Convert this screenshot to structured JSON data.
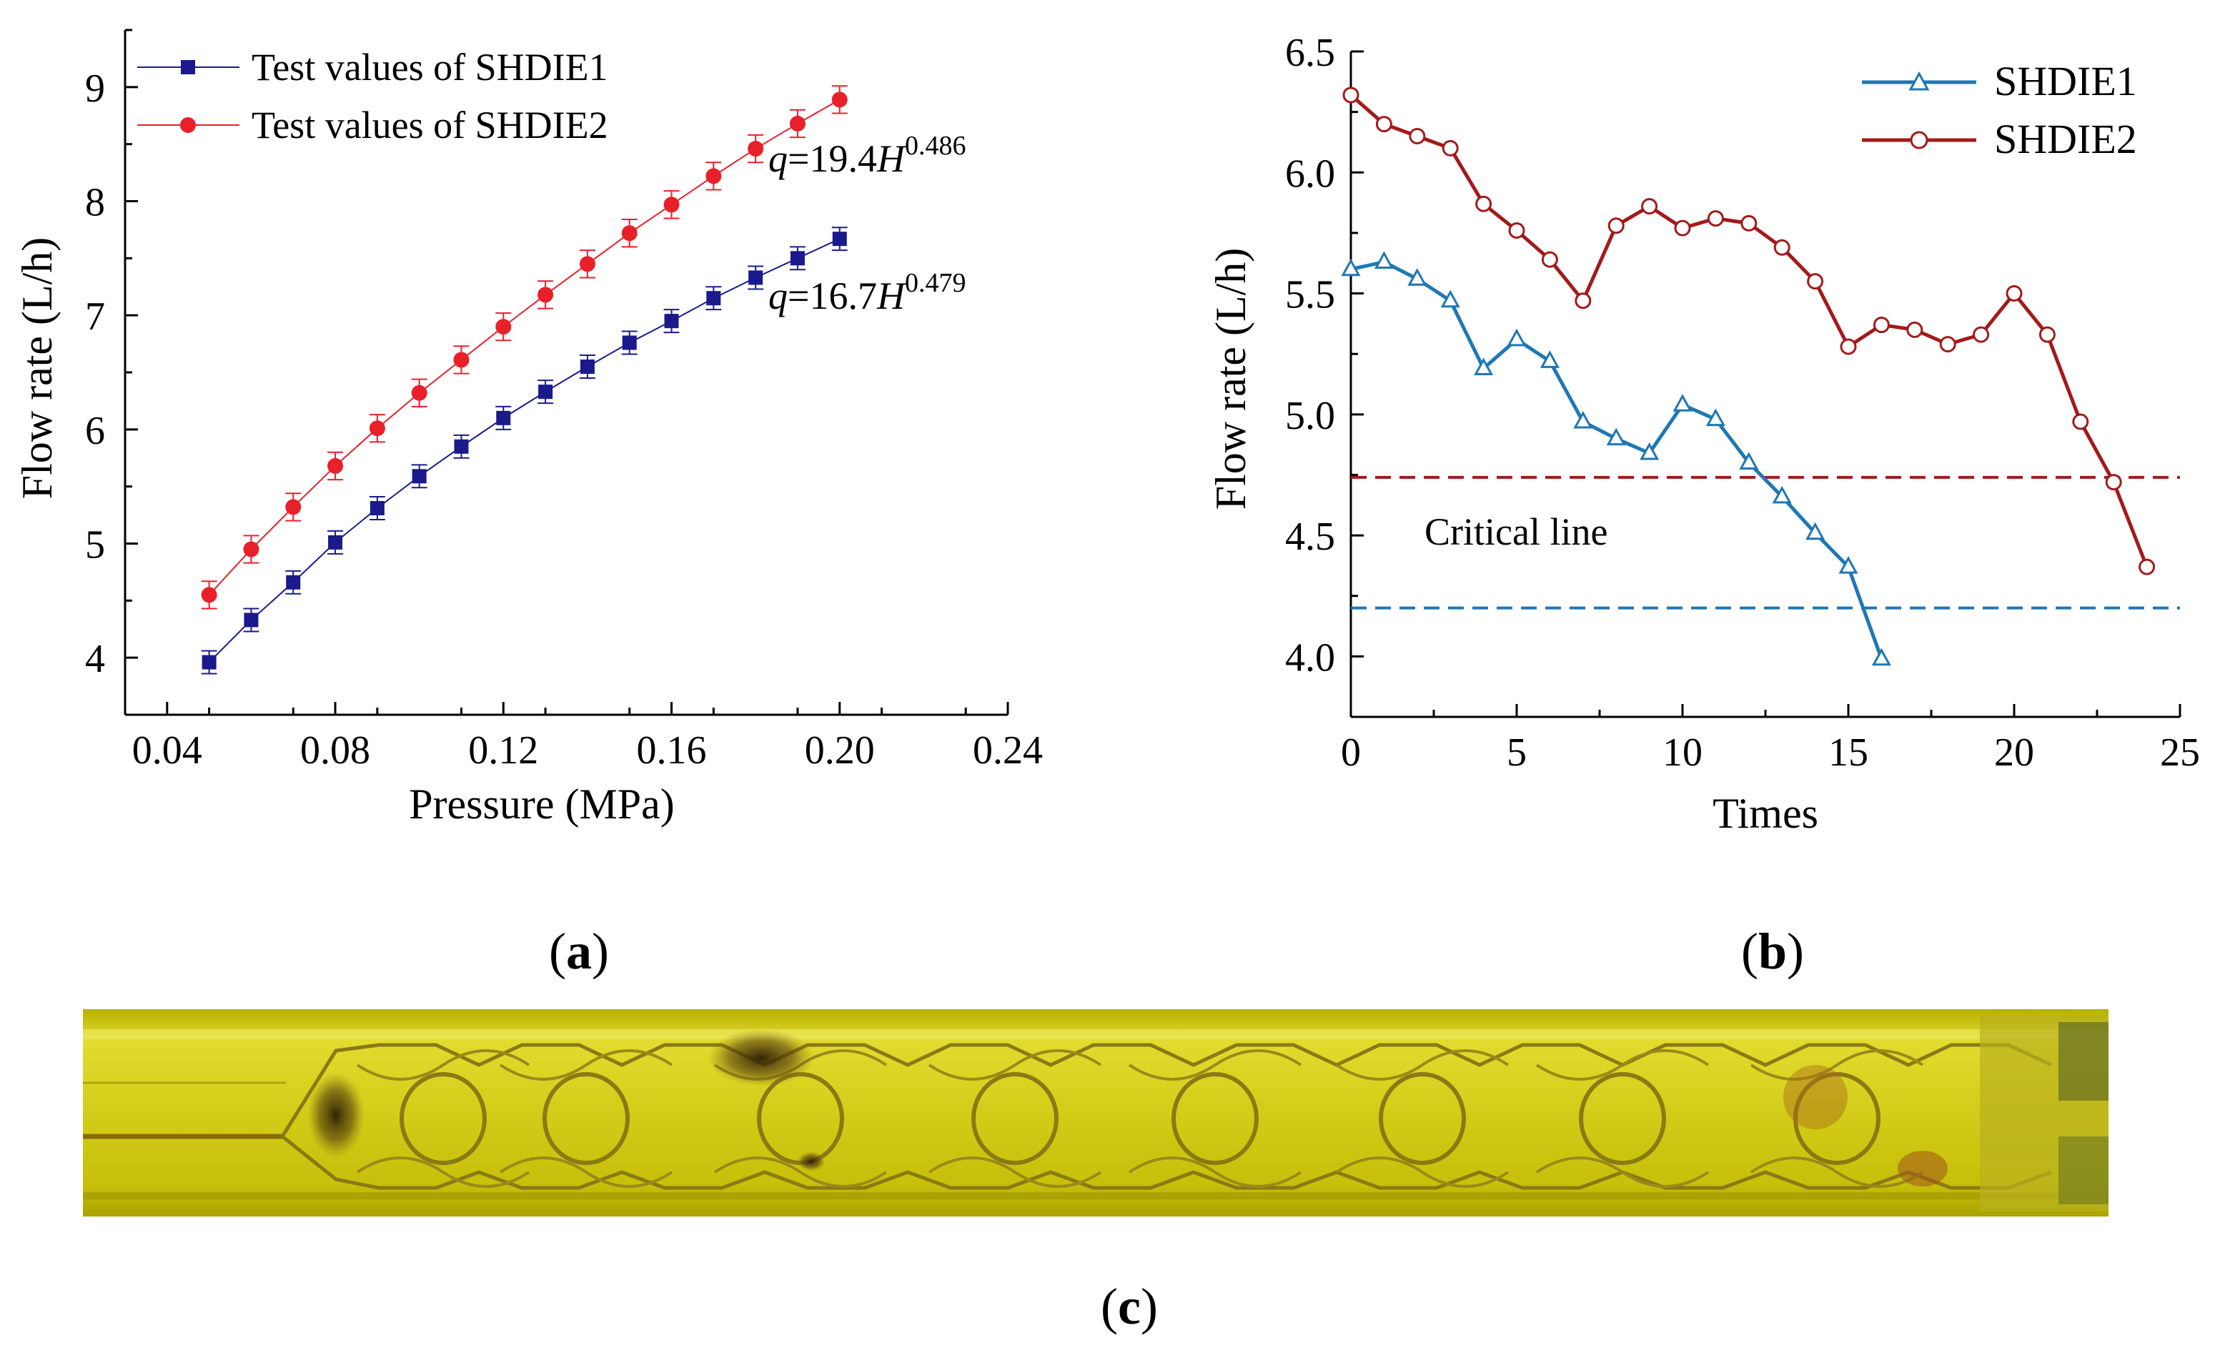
{
  "chart_data": [
    {
      "id": "a",
      "type": "scatter",
      "panel_label": "a",
      "xlabel": "Pressure (MPa)",
      "ylabel": "Flow rate (L/h)",
      "xlim": [
        0.03,
        0.24
      ],
      "ylim": [
        3.5,
        9.5
      ],
      "xticks": [
        0.04,
        0.08,
        0.12,
        0.16,
        0.2,
        0.24
      ],
      "xtick_labels": [
        "0.04",
        "0.08",
        "0.12",
        "0.16",
        "0.20",
        "0.24"
      ],
      "yticks": [
        4,
        5,
        6,
        7,
        8,
        9
      ],
      "ytick_labels": [
        "4",
        "5",
        "6",
        "7",
        "8",
        "9"
      ],
      "x": [
        0.05,
        0.06,
        0.07,
        0.08,
        0.09,
        0.1,
        0.11,
        0.12,
        0.13,
        0.14,
        0.15,
        0.16,
        0.17,
        0.18,
        0.19,
        0.2
      ],
      "series": [
        {
          "name": "Test values of SHDIE1",
          "color": "#1a1a8c",
          "marker": "square",
          "values": [
            3.96,
            4.33,
            4.66,
            5.01,
            5.31,
            5.59,
            5.85,
            6.1,
            6.33,
            6.55,
            6.76,
            6.95,
            7.15,
            7.33,
            7.5,
            7.67
          ],
          "error": 0.1
        },
        {
          "name": "Test values of SHDIE2",
          "color": "#e8202a",
          "marker": "circle",
          "values": [
            4.55,
            4.95,
            5.32,
            5.68,
            6.01,
            6.32,
            6.61,
            6.9,
            7.18,
            7.45,
            7.72,
            7.97,
            8.22,
            8.46,
            8.68,
            8.89
          ],
          "error": 0.12
        }
      ],
      "annotations": [
        {
          "prefix": "q",
          "mid": "=19.4",
          "var": "H",
          "exp": "0.486"
        },
        {
          "prefix": "q",
          "mid": "=16.7",
          "var": "H",
          "exp": "0.479"
        }
      ]
    },
    {
      "id": "b",
      "type": "line",
      "panel_label": "b",
      "xlabel": "Times",
      "ylabel": "Flow rate (L/h)",
      "xlim": [
        0,
        25
      ],
      "ylim": [
        3.75,
        6.5
      ],
      "xticks": [
        0,
        5,
        10,
        15,
        20,
        25
      ],
      "xtick_labels": [
        "0",
        "5",
        "10",
        "15",
        "20",
        "25"
      ],
      "yticks": [
        4.0,
        4.5,
        5.0,
        5.5,
        6.0,
        6.5
      ],
      "ytick_labels": [
        "4.0",
        "4.5",
        "5.0",
        "5.5",
        "6.0",
        "6.5"
      ],
      "series": [
        {
          "name": "SHDIE1",
          "color": "#1f77b4",
          "marker": "triangle",
          "x": [
            0,
            1,
            2,
            3,
            4,
            5,
            6,
            7,
            8,
            9,
            10,
            11,
            12,
            13,
            14,
            15,
            16
          ],
          "values": [
            5.6,
            5.63,
            5.56,
            5.47,
            5.19,
            5.31,
            5.22,
            4.97,
            4.9,
            4.84,
            5.04,
            4.98,
            4.8,
            4.66,
            4.51,
            4.37,
            3.99
          ]
        },
        {
          "name": "SHDIE2",
          "color": "#a31a1a",
          "marker": "circle",
          "x": [
            0,
            1,
            2,
            3,
            4,
            5,
            6,
            7,
            8,
            9,
            10,
            11,
            12,
            13,
            14,
            15,
            16,
            17,
            18,
            19,
            20,
            21,
            22,
            23,
            24
          ],
          "values": [
            6.32,
            6.2,
            6.15,
            6.1,
            5.87,
            5.76,
            5.64,
            5.47,
            5.78,
            5.86,
            5.77,
            5.81,
            5.79,
            5.69,
            5.55,
            5.28,
            5.37,
            5.35,
            5.29,
            5.33,
            5.5,
            5.33,
            4.97,
            4.72,
            4.37
          ]
        }
      ],
      "critical_lines": [
        {
          "y": 4.74,
          "color": "#a31a1a"
        },
        {
          "y": 4.2,
          "color": "#1f77b4"
        }
      ],
      "annotation": "Critical line"
    }
  ],
  "photo": {
    "panel_label": "c",
    "colors": {
      "base": "#c9c300",
      "light": "#e4df3a",
      "dark": "#8f7d10",
      "stain": "#3b2a0a"
    }
  }
}
